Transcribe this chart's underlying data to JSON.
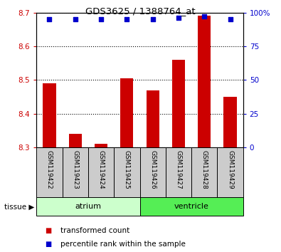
{
  "title": "GDS3625 / 1388764_at",
  "samples": [
    "GSM119422",
    "GSM119423",
    "GSM119424",
    "GSM119425",
    "GSM119426",
    "GSM119427",
    "GSM119428",
    "GSM119429"
  ],
  "transformed_counts": [
    8.49,
    8.34,
    8.31,
    8.505,
    8.47,
    8.56,
    8.69,
    8.45
  ],
  "percentile_ranks": [
    95,
    95,
    95,
    95,
    95,
    96,
    97,
    95
  ],
  "ylim_left": [
    8.3,
    8.7
  ],
  "ylim_right": [
    0,
    100
  ],
  "yticks_left": [
    8.3,
    8.4,
    8.5,
    8.6,
    8.7
  ],
  "yticks_right": [
    0,
    25,
    50,
    75,
    100
  ],
  "bar_color": "#cc0000",
  "scatter_color": "#0000cc",
  "tissue_groups": [
    {
      "label": "atrium",
      "start": 0,
      "end": 3,
      "color": "#ccffcc"
    },
    {
      "label": "ventricle",
      "start": 4,
      "end": 7,
      "color": "#55ee55"
    }
  ],
  "legend_items": [
    {
      "color": "#cc0000",
      "label": "transformed count"
    },
    {
      "color": "#0000cc",
      "label": "percentile rank within the sample"
    }
  ],
  "tissue_label": "tissue",
  "tick_label_color_left": "#cc0000",
  "tick_label_color_right": "#0000cc",
  "bar_width": 0.5,
  "sample_box_color": "#cccccc"
}
